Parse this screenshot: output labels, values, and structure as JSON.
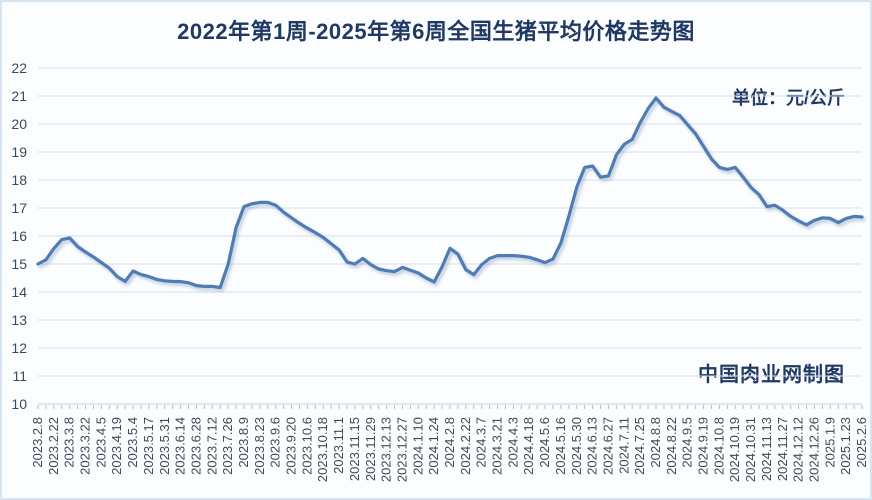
{
  "title": "2022年第1周-2025年第6周全国生猪平均价格走势图",
  "unit_label": "单位：元/公斤",
  "credit": "中国肉业网制图",
  "colors": {
    "line": "#4f7cb4",
    "line_shadow": "#6c87a8",
    "title_text": "#1f3864",
    "grid": "#d9e0e8",
    "axis": "#c3cdd8",
    "tick": "#aebdcc",
    "tick_label": "#3d4a5c"
  },
  "chart_data": {
    "type": "line",
    "title": "2022年第1周-2025年第6周全国生猪平均价格走势图",
    "unit": "元/公斤",
    "ylabel": "",
    "xlabel": "",
    "ylim": [
      10,
      22
    ],
    "ytick_step": 1,
    "grid": true,
    "legend_position": "none",
    "x_labels": [
      "2023.2.8",
      "2023.2.22",
      "2023.3.8",
      "2023.3.22",
      "2023.4.5",
      "2023.4.19",
      "2023.5.4",
      "2023.5.17",
      "2023.5.31",
      "2023.6.14",
      "2023.6.28",
      "2023.7.12",
      "2023.7.26",
      "2023.8.9",
      "2023.8.23",
      "2023.9.6",
      "2023.9.20",
      "2023.10.6",
      "2023.10.18",
      "2023.11.1",
      "2023.11.15",
      "2023.11.29",
      "2023.12.13",
      "2023.12.27",
      "2024.1.10",
      "2024.1.24",
      "2024.2.8",
      "2024.2.22",
      "2024.3.7",
      "2024.3.21",
      "2024.4.3",
      "2024.4.18",
      "2024.5.6",
      "2024.5.16",
      "2024.5.30",
      "2024.6.13",
      "2024.6.27",
      "2024.7.11",
      "2024.7.25",
      "2024.8.8",
      "2024.8.22",
      "2024.9.5",
      "2024.9.19",
      "2024.10.8",
      "2024.10.19",
      "2024.10.31",
      "2024.11.13",
      "2024.11.27",
      "2024.12.12",
      "2024.12.26",
      "2025.1.9",
      "2025.1.23",
      "2025.2.6"
    ],
    "label_every_n_points": 2,
    "series": [
      {
        "name": "全国生猪平均价格",
        "values": [
          15.0,
          15.15,
          15.55,
          15.87,
          15.93,
          15.62,
          15.43,
          15.25,
          15.05,
          14.85,
          14.55,
          14.38,
          14.75,
          14.62,
          14.55,
          14.45,
          14.4,
          14.38,
          14.37,
          14.33,
          14.23,
          14.2,
          14.2,
          14.16,
          15.0,
          16.3,
          17.05,
          17.15,
          17.2,
          17.2,
          17.1,
          16.85,
          16.65,
          16.45,
          16.28,
          16.12,
          15.95,
          15.72,
          15.5,
          15.07,
          15.0,
          15.2,
          14.98,
          14.82,
          14.76,
          14.73,
          14.88,
          14.78,
          14.68,
          14.5,
          14.36,
          14.9,
          15.56,
          15.35,
          14.8,
          14.62,
          14.98,
          15.2,
          15.3,
          15.3,
          15.3,
          15.28,
          15.24,
          15.15,
          15.05,
          15.18,
          15.75,
          16.7,
          17.75,
          18.45,
          18.5,
          18.1,
          18.15,
          18.9,
          19.28,
          19.45,
          20.05,
          20.55,
          20.93,
          20.6,
          20.45,
          20.3,
          19.97,
          19.65,
          19.2,
          18.75,
          18.45,
          18.38,
          18.45,
          18.1,
          17.73,
          17.48,
          17.05,
          17.1,
          16.92,
          16.7,
          16.54,
          16.4,
          16.56,
          16.65,
          16.63,
          16.48,
          16.63,
          16.7,
          16.68
        ]
      }
    ]
  }
}
